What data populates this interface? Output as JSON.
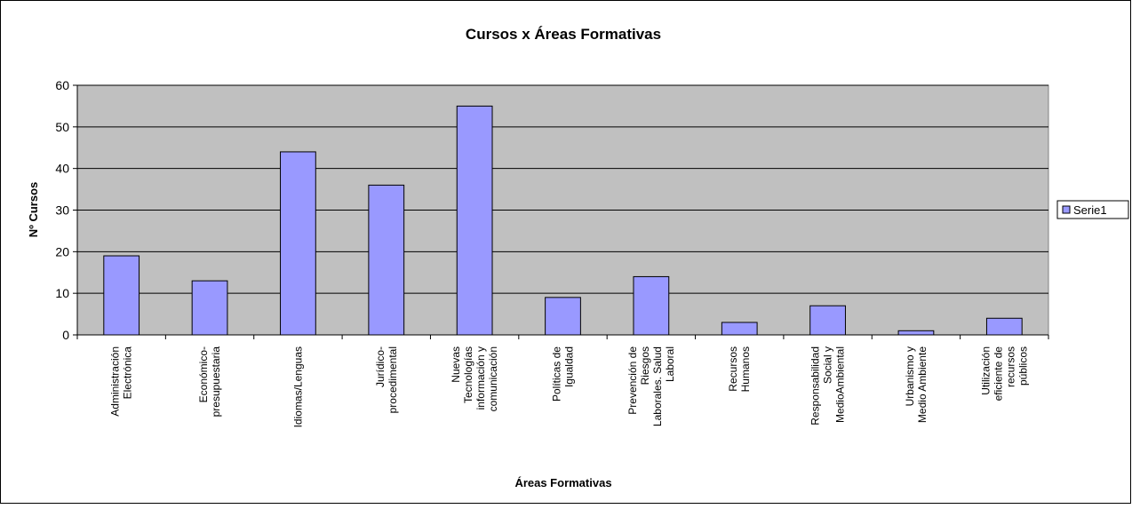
{
  "chart_data": {
    "type": "bar",
    "title": "Cursos x Áreas Formativas",
    "x_label": "Áreas Formativas",
    "y_label": "Nº Cursos",
    "categories": [
      "Administración\nElectrónica",
      "Económico-\npresupuestaria",
      "Idiomas/Lenguas",
      "Jurídico-\nprocedimental",
      "Nuevas\nTecnologías\ninformación y\ncomunicación",
      "Políticas de\nIgualdad",
      "Prevención de\nRiesgos\nLaborales. Salud\nLaboral",
      "Recursos\nHumanos",
      "Responsabilidad\nSocial y\nMedioAmbiental",
      "Urbanismo y\nMedio Ambiente",
      "Utilización\neficiente de\nrecursos\npúblicos"
    ],
    "series": [
      {
        "name": "Serie1",
        "color": "#9999ff",
        "values": [
          19,
          13,
          44,
          36,
          55,
          9,
          14,
          3,
          7,
          1,
          4
        ]
      }
    ],
    "ylim": [
      0,
      60
    ],
    "yticks": [
      0,
      10,
      20,
      30,
      40,
      50,
      60
    ],
    "grid": true,
    "legend": "right"
  }
}
